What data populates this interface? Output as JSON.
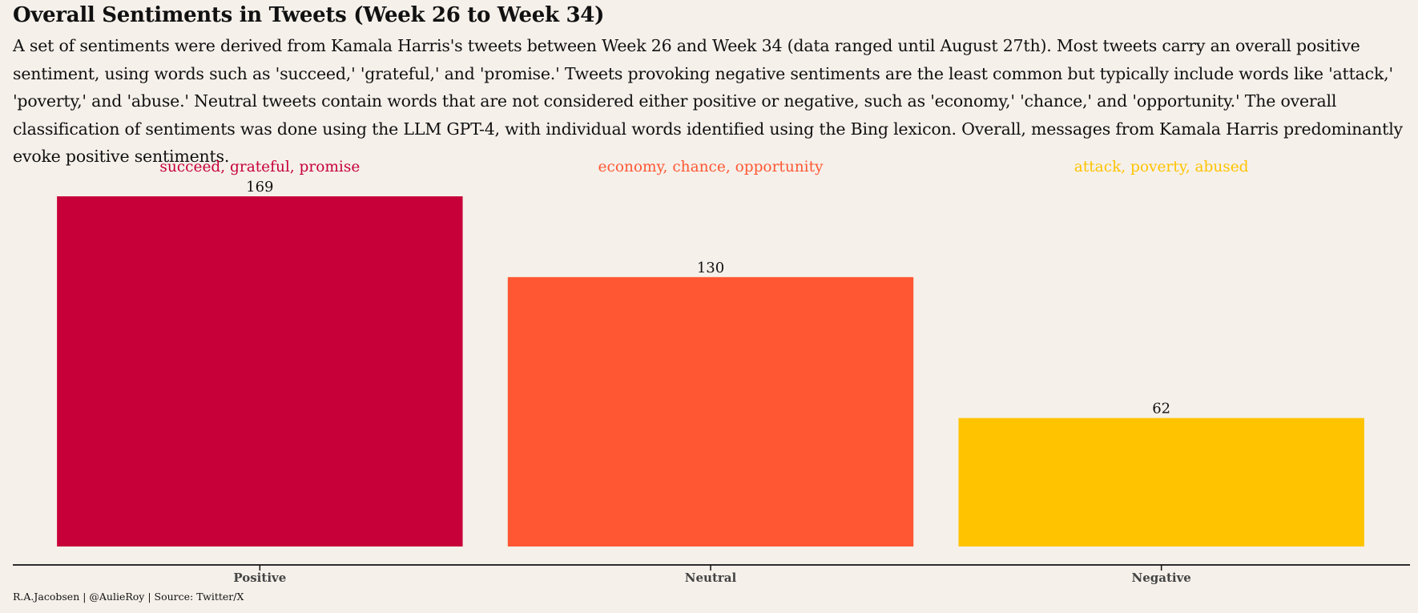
{
  "chart_data": {
    "type": "bar",
    "title": "Overall Sentiments in Tweets (Week 26 to Week 34)",
    "subtitle": "A set of sentiments were derived from Kamala Harris's tweets between Week 26 and Week 34 (data ranged until August 27th). Most tweets carry an overall positive sentiment, using words such as 'succeed,' 'grateful,' and 'promise.' Tweets provoking negative sentiments are the least common but typically include words like 'attack,' 'poverty,' and 'abuse.' Neutral tweets contain words that are not considered either positive or negative, such as 'economy,' 'chance,' and 'opportunity.' The overall classification of sentiments was done using the LLM GPT-4, with individual words identified using the Bing lexicon. Overall, messages from Kamala Harris predominantly evoke positive sentiments.",
    "categories": [
      "Positive",
      "Neutral",
      "Negative"
    ],
    "values": [
      169,
      130,
      62
    ],
    "word_labels": [
      "succeed, grateful, promise",
      "economy, chance, opportunity",
      "attack, poverty, abused"
    ],
    "colors": [
      "#c70039",
      "#ff5733",
      "#ffc300"
    ],
    "xlabel": "",
    "ylabel": "",
    "ylim": [
      0,
      169
    ],
    "grid": false,
    "caption": "R.A.Jacobsen | @AulieRoy | Source: Twitter/X"
  }
}
